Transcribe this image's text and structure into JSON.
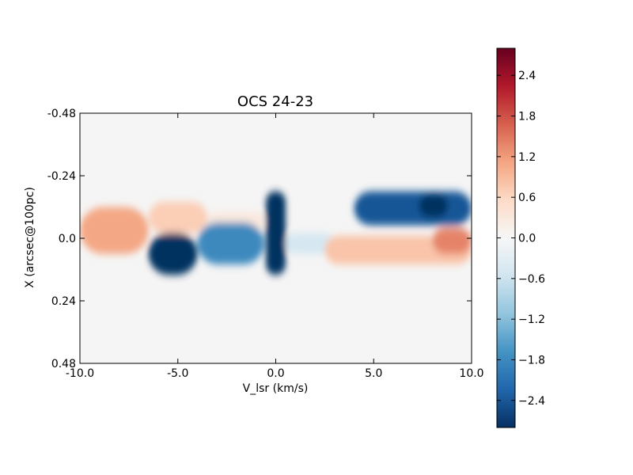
{
  "chart_data": {
    "type": "heatmap",
    "title": "OCS 24-23",
    "xlabel": "V_lsr (km/s)",
    "ylabel": "X (arcsec@100pc)",
    "xlim": [
      -10.0,
      10.0
    ],
    "ylim": [
      0.48,
      -0.48
    ],
    "x_ticks": [
      "-10.0",
      "-5.0",
      "0.0",
      "5.0",
      "10.0"
    ],
    "x_tick_values": [
      -10,
      -5,
      0,
      5,
      10
    ],
    "y_ticks": [
      "-0.48",
      "-0.24",
      "0.0",
      "0.24",
      "0.48"
    ],
    "y_tick_values": [
      -0.48,
      -0.24,
      0,
      0.24,
      0.48
    ],
    "colormap": "RdBu_r",
    "vmin": -2.8,
    "vmax": 2.8,
    "colorbar_ticks": [
      "2.4",
      "1.8",
      "1.2",
      "0.6",
      "0.0",
      "−0.6",
      "−1.2",
      "−1.8",
      "−2.4"
    ],
    "colorbar_tick_values": [
      2.4,
      1.8,
      1.2,
      0.6,
      0.0,
      -0.6,
      -1.2,
      -1.8,
      -2.4
    ],
    "features": [
      {
        "kind": "red",
        "v": [
          -10.0,
          -6.5
        ],
        "x": [
          -0.12,
          0.06
        ],
        "value": 1.1
      },
      {
        "kind": "red",
        "v": [
          -6.5,
          -3.5
        ],
        "x": [
          -0.14,
          -0.02
        ],
        "value": 0.7
      },
      {
        "kind": "red",
        "v": [
          -3.5,
          -0.6
        ],
        "x": [
          -0.1,
          -0.03
        ],
        "value": 0.3
      },
      {
        "kind": "blue",
        "v": [
          -6.5,
          -4.0
        ],
        "x": [
          -0.02,
          0.14
        ],
        "value": -3.0
      },
      {
        "kind": "blue",
        "v": [
          -4.0,
          -0.6
        ],
        "x": [
          -0.06,
          0.1
        ],
        "value": -1.8
      },
      {
        "kind": "blue",
        "v": [
          -0.5,
          0.5
        ],
        "x": [
          -0.18,
          0.14
        ],
        "value": -3.0
      },
      {
        "kind": "blue",
        "v": [
          0.5,
          3.0
        ],
        "x": [
          -0.02,
          0.06
        ],
        "value": -0.5
      },
      {
        "kind": "blue",
        "v": [
          4.0,
          10.0
        ],
        "x": [
          -0.18,
          -0.05
        ],
        "value": -2.4
      },
      {
        "kind": "blue",
        "v": [
          7.3,
          8.8
        ],
        "x": [
          -0.17,
          -0.08
        ],
        "value": -3.0
      },
      {
        "kind": "red",
        "v": [
          2.5,
          10.0
        ],
        "x": [
          -0.01,
          0.1
        ],
        "value": 0.8
      },
      {
        "kind": "red",
        "v": [
          8.0,
          10.0
        ],
        "x": [
          -0.04,
          0.06
        ],
        "value": 1.4
      }
    ]
  }
}
